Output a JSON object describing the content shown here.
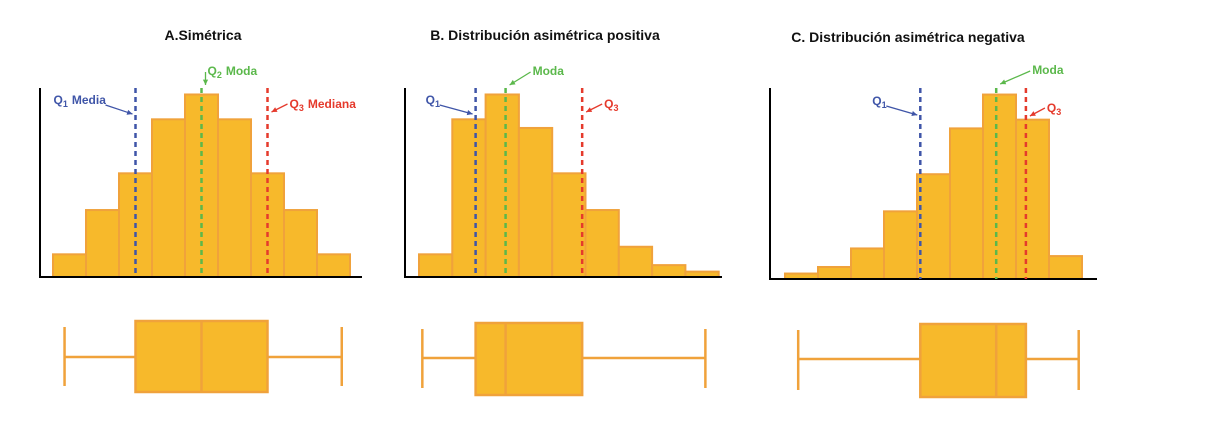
{
  "colors": {
    "bar_fill": "#f7b92b",
    "bar_stroke": "#f0a23b",
    "axis": "#000000",
    "q1": "#3f55a8",
    "mode": "#5bb84b",
    "q3": "#e53a2c"
  },
  "chart_data": [
    {
      "type": "bar",
      "title": "A.Simétrica",
      "values": [
        2.1,
        6.2,
        9.6,
        14.6,
        16.9,
        14.6,
        9.6,
        6.2,
        2.1
      ],
      "ylim": [
        0,
        17.5
      ],
      "bins": 9,
      "markers": [
        {
          "key": "q1",
          "bin": 2.5,
          "q": "Q",
          "sub": "1",
          "text": "Media"
        },
        {
          "key": "mode",
          "bin": 4.5,
          "q": "Q",
          "sub": "2",
          "text": "Moda"
        },
        {
          "key": "q3",
          "bin": 6.5,
          "q": "Q",
          "sub": "3",
          "text": "Mediana"
        }
      ],
      "boxplot": {
        "min": 0.35,
        "q1": 2.5,
        "median": 4.5,
        "q3": 6.5,
        "max": 8.75
      }
    },
    {
      "type": "bar",
      "title": "B.  Distribución asimétrica positiva",
      "values": [
        2.1,
        14.6,
        16.9,
        13.8,
        9.6,
        6.2,
        2.8,
        1.1,
        0.5
      ],
      "ylim": [
        0,
        17.5
      ],
      "bins": 9,
      "markers": [
        {
          "key": "q1",
          "bin": 1.7,
          "q": "Q",
          "sub": "1",
          "text": ""
        },
        {
          "key": "mode",
          "bin": 2.6,
          "q": "",
          "sub": "",
          "text": "Moda"
        },
        {
          "key": "q3",
          "bin": 4.9,
          "q": "Q",
          "sub": "3",
          "text": ""
        }
      ],
      "boxplot": {
        "min": 0.1,
        "q1": 1.7,
        "median": 2.6,
        "q3": 4.9,
        "max": 8.6
      }
    },
    {
      "type": "bar",
      "title": "C. Distribución asimétrica negativa",
      "values": [
        0.5,
        1.1,
        2.8,
        6.2,
        9.6,
        13.8,
        16.9,
        14.6,
        2.1
      ],
      "ylim": [
        0,
        17.5
      ],
      "bins": 9,
      "markers": [
        {
          "key": "q1",
          "bin": 4.1,
          "q": "Q",
          "sub": "1",
          "text": ""
        },
        {
          "key": "mode",
          "bin": 6.4,
          "q": "",
          "sub": "",
          "text": "Moda"
        },
        {
          "key": "q3",
          "bin": 7.3,
          "q": "Q",
          "sub": "3",
          "text": ""
        }
      ],
      "boxplot": {
        "min": 0.4,
        "q1": 4.1,
        "median": 6.4,
        "q3": 7.3,
        "max": 8.9
      }
    }
  ]
}
